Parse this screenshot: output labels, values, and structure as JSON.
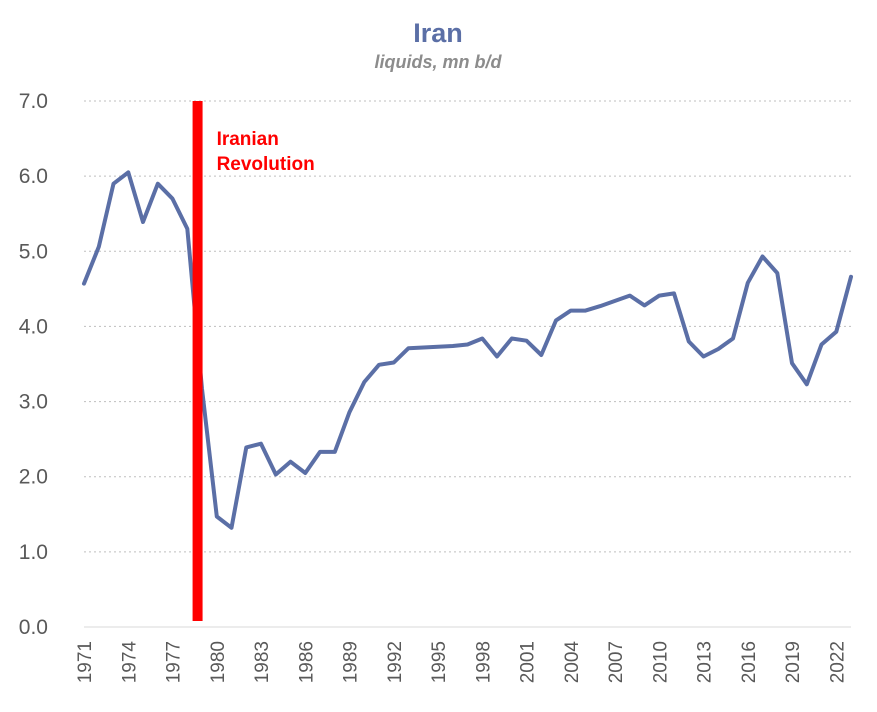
{
  "chart_data": {
    "type": "line",
    "title": "Iran",
    "subtitle": "liquids, mn b/d",
    "xlabel": "",
    "ylabel": "",
    "ylim": [
      0,
      7
    ],
    "yticks": [
      "0.0",
      "1.0",
      "2.0",
      "3.0",
      "4.0",
      "5.0",
      "6.0",
      "7.0"
    ],
    "xlim": [
      1971,
      2023
    ],
    "xticks": [
      "1971",
      "1974",
      "1977",
      "1980",
      "1983",
      "1986",
      "1989",
      "1992",
      "1995",
      "1998",
      "2001",
      "2004",
      "2007",
      "2010",
      "2013",
      "2016",
      "2019",
      "2022"
    ],
    "grid": true,
    "series": [
      {
        "name": "",
        "color": "#5b6fa6",
        "x": [
          1971,
          1972,
          1973,
          1974,
          1975,
          1976,
          1977,
          1978,
          1979,
          1980,
          1981,
          1982,
          1983,
          1984,
          1985,
          1986,
          1987,
          1988,
          1989,
          1990,
          1991,
          1992,
          1993,
          1994,
          1995,
          1996,
          1997,
          1998,
          1999,
          2000,
          2001,
          2002,
          2003,
          2004,
          2005,
          2006,
          2007,
          2008,
          2009,
          2010,
          2011,
          2012,
          2013,
          2014,
          2015,
          2016,
          2017,
          2018,
          2019,
          2020,
          2021,
          2022,
          2023
        ],
        "values": [
          4.57,
          5.06,
          5.9,
          6.05,
          5.39,
          5.9,
          5.7,
          5.3,
          3.17,
          1.47,
          1.32,
          2.39,
          2.44,
          2.03,
          2.2,
          2.05,
          2.33,
          2.33,
          2.86,
          3.26,
          3.49,
          3.52,
          3.71,
          3.72,
          3.73,
          3.74,
          3.76,
          3.84,
          3.6,
          3.84,
          3.81,
          3.62,
          4.08,
          4.21,
          4.21,
          4.27,
          4.34,
          4.41,
          4.28,
          4.41,
          4.44,
          3.8,
          3.6,
          3.7,
          3.84,
          4.58,
          4.93,
          4.71,
          3.51,
          3.23,
          3.76,
          3.93,
          4.66
        ]
      }
    ],
    "annotations": [
      {
        "label_line1": "Iranian",
        "label_line2": "Revolution",
        "x": 1978.7,
        "color": "#ff0000"
      }
    ]
  }
}
